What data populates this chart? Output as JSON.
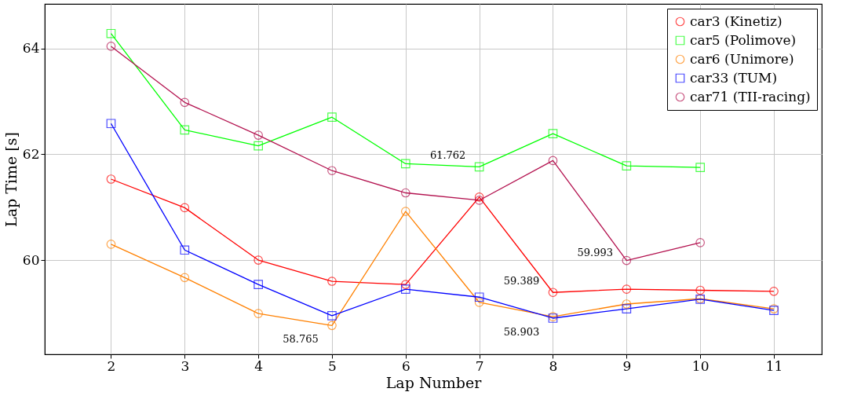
{
  "chart_data": {
    "type": "line",
    "xlabel": "Lap Number",
    "ylabel": "Lap Time [s]",
    "x": [
      2,
      3,
      4,
      5,
      6,
      7,
      8,
      9,
      10,
      11
    ],
    "xlim": [
      1.1,
      11.65
    ],
    "ylim": [
      58.22,
      64.84
    ],
    "xticks": [
      2,
      3,
      4,
      5,
      6,
      7,
      8,
      9,
      10,
      11
    ],
    "yticks": [
      60,
      62,
      64
    ],
    "grid": true,
    "legend": "top right",
    "line_style": "solid",
    "series": [
      {
        "name": "car3 (Kinetiz)",
        "color": "#ff0000",
        "marker": "circle",
        "values": [
          61.53,
          60.99,
          60.0,
          59.6,
          59.54,
          61.19,
          59.389,
          59.45,
          59.43,
          59.41
        ]
      },
      {
        "name": "car5 (Polimove)",
        "color": "#00ff00",
        "marker": "square",
        "values": [
          64.28,
          62.46,
          62.16,
          62.7,
          61.82,
          61.762,
          62.39,
          61.78,
          61.75,
          null
        ]
      },
      {
        "name": "car6 (Unimore)",
        "color": "#ff8000",
        "marker": "circle",
        "values": [
          60.3,
          59.67,
          58.99,
          58.765,
          60.92,
          59.2,
          58.93,
          59.17,
          59.27,
          59.08
        ]
      },
      {
        "name": "car33 (TUM)",
        "color": "#0000ff",
        "marker": "square",
        "values": [
          62.58,
          60.19,
          59.54,
          58.95,
          59.45,
          59.3,
          58.903,
          59.08,
          59.26,
          59.05
        ]
      },
      {
        "name": "car71 (TII-racing)",
        "color": "#b3124f",
        "marker": "circle",
        "values": [
          64.04,
          62.98,
          62.36,
          61.69,
          61.27,
          61.13,
          61.88,
          59.993,
          60.33,
          null
        ]
      }
    ],
    "annotations": [
      {
        "text": "61.762",
        "x": 7,
        "y": 61.762
      },
      {
        "text": "58.765",
        "x": 5,
        "y": 58.765
      },
      {
        "text": "59.389",
        "x": 8,
        "y": 59.389
      },
      {
        "text": "58.903",
        "x": 8,
        "y": 58.903
      },
      {
        "text": "59.993",
        "x": 9,
        "y": 59.993
      }
    ]
  }
}
